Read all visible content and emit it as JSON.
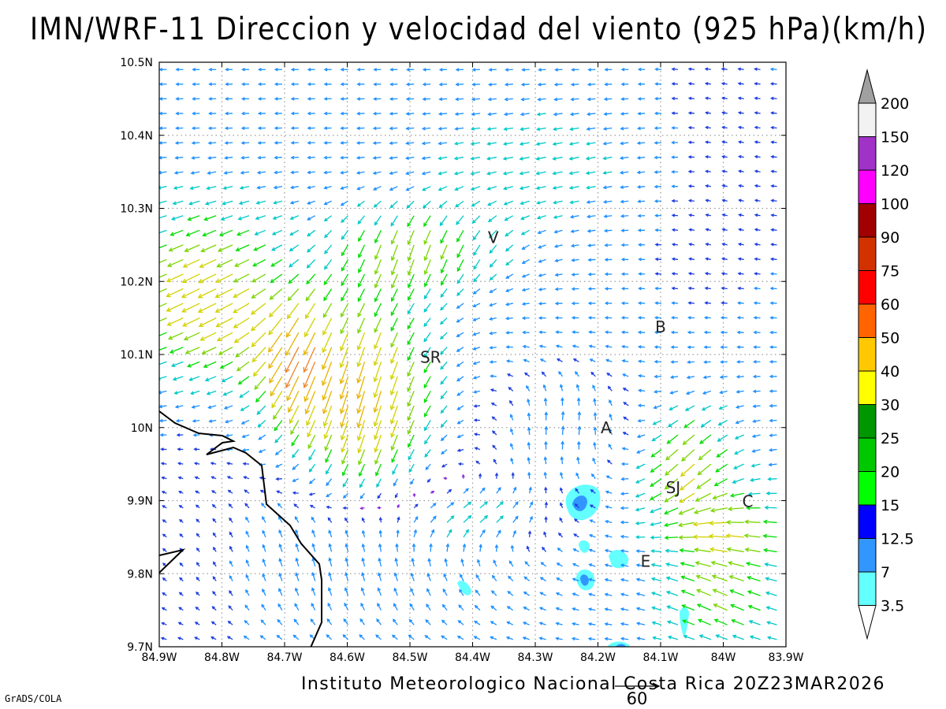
{
  "title": "IMN/WRF-11 Direccion y velocidad del viento (925 hPa)(km/h)",
  "source": "Instituto Meteorologico Nacional Costa Rica 20Z23MAR2026",
  "credit": "GrADS/COLA",
  "reference_vector": {
    "label": "60"
  },
  "map": {
    "lon_range": [
      -84.9,
      -83.9
    ],
    "lat_range": [
      9.7,
      10.5
    ],
    "x_ticks": [
      "84.9W",
      "84.8W",
      "84.7W",
      "84.6W",
      "84.5W",
      "84.4W",
      "84.3W",
      "84.2W",
      "84.1W",
      "84W",
      "83.9W"
    ],
    "y_ticks": [
      "9.7N",
      "9.8N",
      "9.9N",
      "10N",
      "10.1N",
      "10.2N",
      "10.3N",
      "10.4N",
      "10.5N"
    ],
    "grid": "dotted",
    "coastline_color": "#000000"
  },
  "place_labels": [
    {
      "text": "V",
      "lon": -84.367,
      "lat": 10.26
    },
    {
      "text": "B",
      "lon": -84.1,
      "lat": 10.138
    },
    {
      "text": "SR",
      "lon": -84.467,
      "lat": 10.096
    },
    {
      "text": "A",
      "lon": -84.187,
      "lat": 10.0
    },
    {
      "text": "SJ",
      "lon": -84.08,
      "lat": 9.918
    },
    {
      "text": "C",
      "lon": -83.961,
      "lat": 9.899
    },
    {
      "text": "E",
      "lon": -84.124,
      "lat": 9.817
    }
  ],
  "colorbar": {
    "levels": [
      "200",
      "150",
      "120",
      "100",
      "90",
      "75",
      "60",
      "50",
      "40",
      "30",
      "25",
      "20",
      "15",
      "12.5",
      "7",
      "3.5"
    ],
    "colors": [
      "#f2f2f2",
      "#a032c8",
      "#ff00ff",
      "#a00000",
      "#d23200",
      "#ff0000",
      "#ff6400",
      "#ffc800",
      "#ffff00",
      "#009600",
      "#00c800",
      "#00ff00",
      "#0000ff",
      "#3296ff",
      "#64ffff"
    ],
    "top_triangle_color": "#a0a0a0",
    "bottom_triangle_color": "#ffffff"
  }
}
